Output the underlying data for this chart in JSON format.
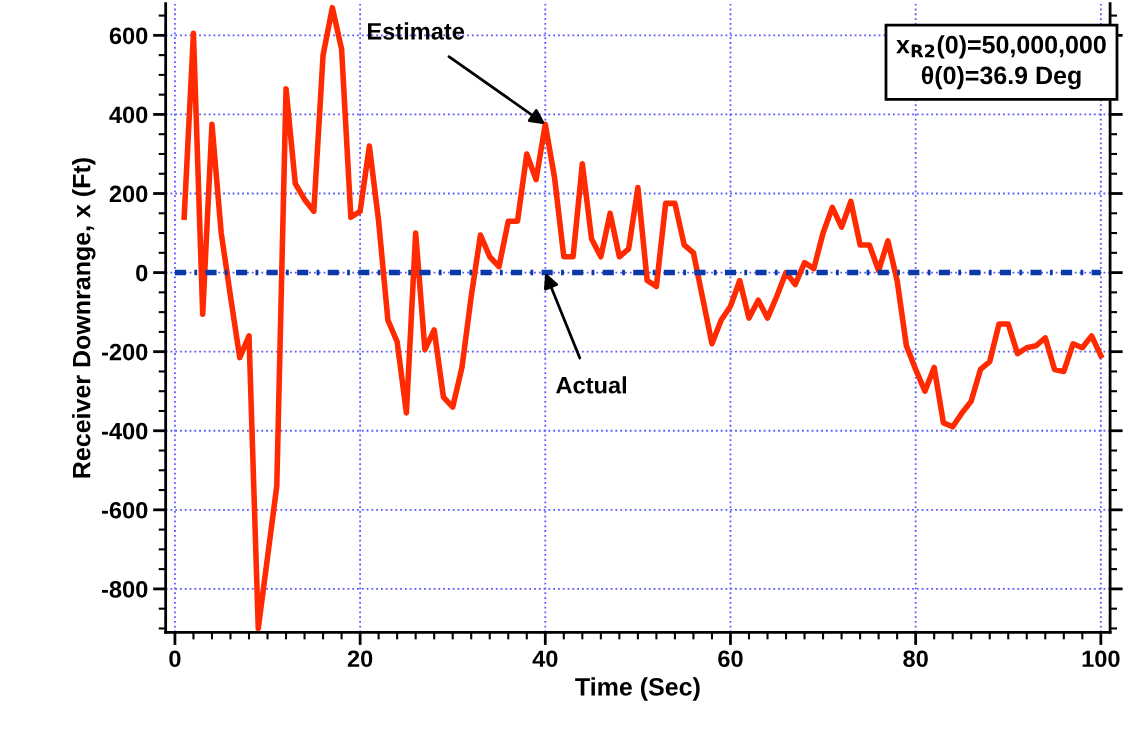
{
  "chart_data": {
    "type": "line",
    "xlabel": "Time (Sec)",
    "ylabel": "Receiver Downrange, x (Ft)",
    "xlim": [
      -1,
      101
    ],
    "ylim": [
      -910,
      680
    ],
    "xticks": [
      0,
      20,
      40,
      60,
      80,
      100
    ],
    "yticks": [
      -800,
      -600,
      -400,
      -200,
      0,
      200,
      400,
      600
    ],
    "grid": true,
    "marker": "none",
    "annotations": [
      {
        "text": "Estimate",
        "x": 40,
        "y": 375
      },
      {
        "text": "Actual",
        "x": 40,
        "y": 0
      },
      "x$_{R2}$(0)=50,000,000",
      "θ(0)=36.9 Deg"
    ],
    "series": [
      {
        "color": "#ff2a00",
        "line_style": "solid",
        "x": [
          1,
          2,
          3,
          4,
          5,
          6,
          7,
          8,
          9,
          10,
          11,
          12,
          13,
          14,
          15,
          16,
          17,
          18,
          19,
          20,
          21,
          22,
          23,
          24,
          25,
          26,
          27,
          28,
          29,
          30,
          31,
          32,
          33,
          34,
          35,
          36,
          37,
          38,
          39,
          40,
          41,
          42,
          43,
          44,
          45,
          46,
          47,
          48,
          49,
          50,
          51,
          52,
          53,
          54,
          55,
          56,
          57,
          58,
          59,
          60,
          61,
          62,
          63,
          64,
          65,
          66,
          67,
          68,
          69,
          70,
          71,
          72,
          73,
          74,
          75,
          76,
          77,
          78,
          79,
          80,
          81,
          82,
          83,
          84,
          85,
          86,
          87,
          88,
          89,
          90,
          91,
          92,
          93,
          94,
          95,
          96,
          97,
          98,
          99,
          100
        ],
        "values": [
          140,
          605,
          -105,
          375,
          100,
          -60,
          -215,
          -160,
          -900,
          -720,
          -540,
          465,
          225,
          185,
          155,
          550,
          670,
          565,
          140,
          155,
          320,
          130,
          -120,
          -175,
          -355,
          100,
          -195,
          -145,
          -315,
          -340,
          -240,
          -60,
          95,
          40,
          15,
          130,
          130,
          300,
          235,
          375,
          240,
          40,
          40,
          275,
          85,
          40,
          150,
          40,
          60,
          215,
          -20,
          -35,
          175,
          175,
          70,
          50,
          -65,
          -180,
          -120,
          -85,
          -20,
          -115,
          -70,
          -115,
          -60,
          0,
          -30,
          25,
          10,
          100,
          165,
          115,
          180,
          70,
          70,
          5,
          80,
          -20,
          -185,
          -245,
          -300,
          -240,
          -380,
          -390,
          -355,
          -325,
          -245,
          -225,
          -130,
          -130,
          -205,
          -190,
          -185,
          -165,
          -245,
          -250,
          -180,
          -190,
          -160,
          -210
        ]
      },
      {
        "color": "#0a3aa8",
        "line_style": "dashed",
        "x": [
          0,
          100
        ],
        "values": [
          0,
          0
        ]
      }
    ]
  }
}
